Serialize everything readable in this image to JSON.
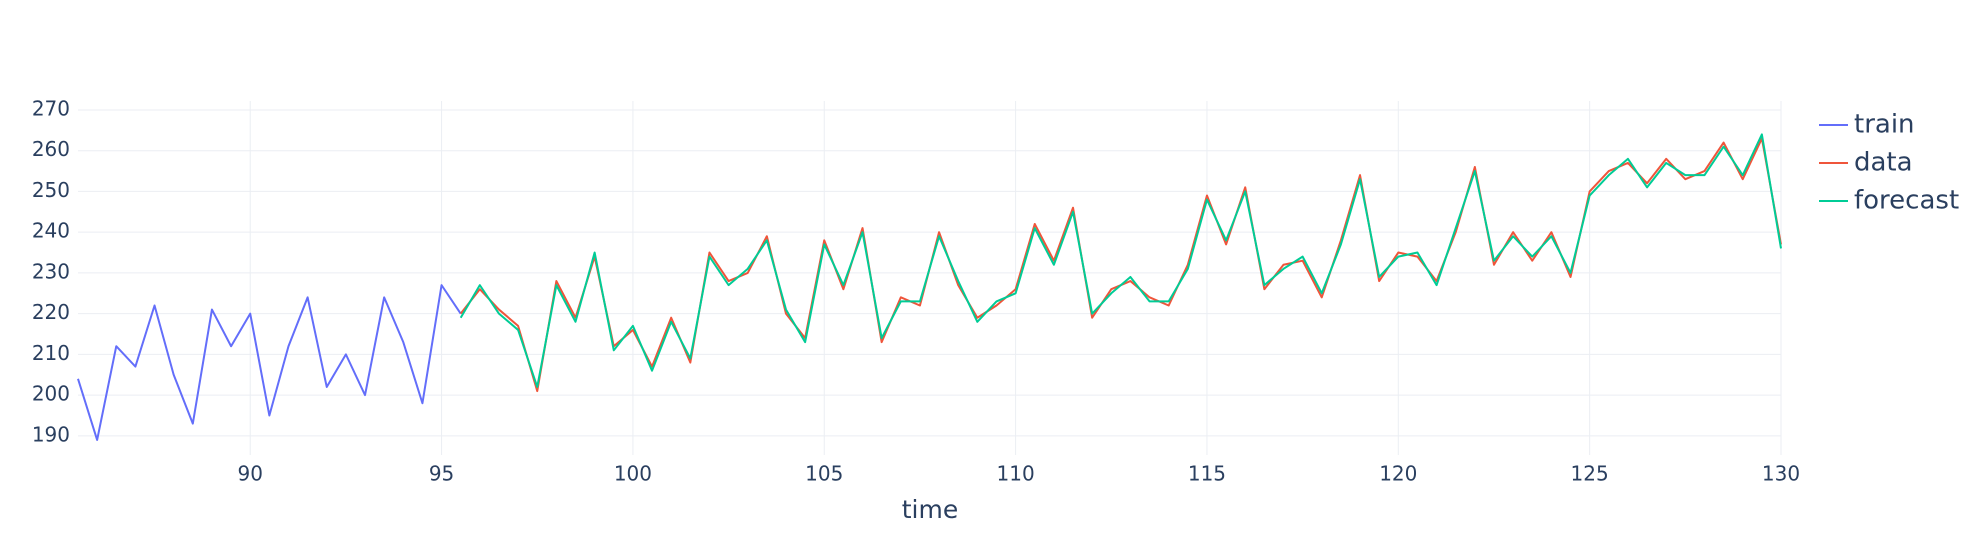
{
  "chart_data": {
    "type": "line",
    "x_label": "time",
    "xlim": [
      85.5,
      130
    ],
    "ylim": [
      185.3,
      272.2
    ],
    "xticks": [
      90,
      95,
      100,
      105,
      110,
      115,
      120,
      125,
      130
    ],
    "yticks": [
      190,
      200,
      210,
      220,
      230,
      240,
      250,
      260,
      270
    ],
    "grid": true,
    "legend": "right",
    "series": [
      {
        "name": "train",
        "color": "#636efa",
        "x": [
          85.5,
          86,
          86.5,
          87,
          87.5,
          88,
          88.5,
          89,
          89.5,
          90,
          90.5,
          91,
          91.5,
          92,
          92.5,
          93,
          93.5,
          94,
          94.5,
          95,
          95.5
        ],
        "values": [
          204,
          189,
          212,
          207,
          222,
          205,
          193,
          221,
          212,
          220,
          195,
          212,
          224,
          202,
          210,
          200,
          224,
          213,
          198,
          227,
          220
        ]
      },
      {
        "name": "data",
        "color": "#EF553B",
        "x": [
          95.5,
          96,
          96.5,
          97,
          97.5,
          98,
          98.5,
          99,
          99.5,
          100,
          100.5,
          101,
          101.5,
          102,
          102.5,
          103,
          103.5,
          104,
          104.5,
          105,
          105.5,
          106,
          106.5,
          107,
          107.5,
          108,
          108.5,
          109,
          109.5,
          110,
          110.5,
          111,
          111.5,
          112,
          112.5,
          113,
          113.5,
          114,
          114.5,
          115,
          115.5,
          116,
          116.5,
          117,
          117.5,
          118,
          118.5,
          119,
          119.5,
          120,
          120.5,
          121,
          121.5,
          122,
          122.5,
          123,
          123.5,
          124,
          124.5,
          125,
          125.5,
          126,
          126.5,
          127,
          127.5,
          128,
          128.5,
          129,
          129.5,
          130
        ],
        "values": [
          220,
          226,
          221,
          217,
          201,
          228,
          219,
          234,
          212,
          216,
          207,
          219,
          208,
          235,
          228,
          230,
          239,
          220,
          214,
          238,
          226,
          241,
          213,
          224,
          222,
          240,
          227,
          219,
          222,
          226,
          242,
          233,
          246,
          219,
          226,
          228,
          224,
          222,
          232,
          249,
          237,
          251,
          226,
          232,
          233,
          224,
          238,
          254,
          228,
          235,
          234,
          228,
          240,
          256,
          232,
          240,
          233,
          240,
          229,
          250,
          255,
          257,
          252,
          258,
          253,
          255,
          262,
          253,
          263,
          237
        ]
      },
      {
        "name": "forecast",
        "color": "#00cc96",
        "x": [
          95.5,
          96,
          96.5,
          97,
          97.5,
          98,
          98.5,
          99,
          99.5,
          100,
          100.5,
          101,
          101.5,
          102,
          102.5,
          103,
          103.5,
          104,
          104.5,
          105,
          105.5,
          106,
          106.5,
          107,
          107.5,
          108,
          108.5,
          109,
          109.5,
          110,
          110.5,
          111,
          111.5,
          112,
          112.5,
          113,
          113.5,
          114,
          114.5,
          115,
          115.5,
          116,
          116.5,
          117,
          117.5,
          118,
          118.5,
          119,
          119.5,
          120,
          120.5,
          121,
          121.5,
          122,
          122.5,
          123,
          123.5,
          124,
          124.5,
          125,
          125.5,
          126,
          126.5,
          127,
          127.5,
          128,
          128.5,
          129,
          129.5,
          130
        ],
        "values": [
          219,
          227,
          220,
          216,
          202,
          227,
          218,
          235,
          211,
          217,
          206,
          218,
          209,
          234,
          227,
          231,
          238,
          221,
          213,
          237,
          227,
          240,
          214,
          223,
          223,
          239,
          228,
          218,
          223,
          225,
          241,
          232,
          245,
          220,
          225,
          229,
          223,
          223,
          231,
          248,
          238,
          250,
          227,
          231,
          234,
          225,
          237,
          253,
          229,
          234,
          235,
          227,
          241,
          255,
          233,
          239,
          234,
          239,
          230,
          249,
          254,
          258,
          251,
          257,
          254,
          254,
          261,
          254,
          264,
          236
        ]
      }
    ]
  }
}
